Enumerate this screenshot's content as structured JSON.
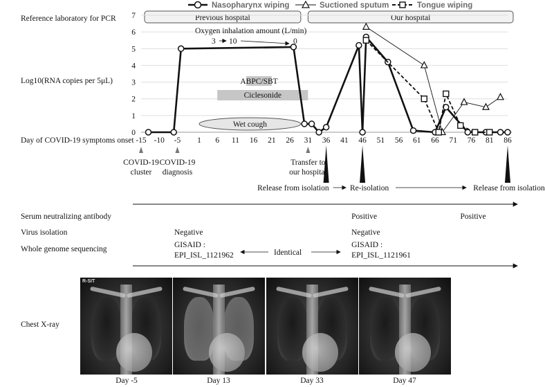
{
  "chart_data": {
    "type": "line",
    "title": "",
    "legend": {
      "position": "top",
      "entries": [
        "Nasopharynx wiping",
        "Suctioned sputum",
        "Tongue wiping"
      ]
    },
    "ylabel": "Log10(RNA copies per 5μL)",
    "xlabel": "Day of COVID-19 symptoms onset",
    "ylim": [
      0,
      7
    ],
    "yticks": [
      0,
      1,
      2,
      3,
      4,
      5,
      6,
      7
    ],
    "xlim": [
      -15,
      86
    ],
    "xticks": [
      -15,
      -10,
      -5,
      1,
      6,
      11,
      16,
      21,
      26,
      31,
      36,
      41,
      46,
      51,
      56,
      61,
      66,
      71,
      76,
      81,
      86
    ],
    "series": [
      {
        "name": "Nasopharynx wiping",
        "marker": "circle",
        "line": "solid-thick",
        "x": [
          -13,
          -6,
          -4,
          27,
          30,
          32,
          34,
          36,
          45,
          46,
          47,
          53,
          60,
          66,
          69,
          75,
          80,
          84,
          86
        ],
        "y": [
          0,
          0,
          5.0,
          5.1,
          0.5,
          0.5,
          0.0,
          0.3,
          5.2,
          0.0,
          5.7,
          4.2,
          0.1,
          0.0,
          1.5,
          0.0,
          0.0,
          0.0,
          0.0
        ]
      },
      {
        "name": "Suctioned sputum",
        "marker": "triangle",
        "line": "solid-thin",
        "x": [
          47,
          63,
          68,
          74,
          80,
          84
        ],
        "y": [
          6.3,
          4.0,
          0.0,
          1.8,
          1.5,
          2.1
        ]
      },
      {
        "name": "Tongue wiping",
        "marker": "square",
        "line": "dashed",
        "x": [
          47,
          63,
          67,
          69,
          73,
          77,
          81
        ],
        "y": [
          5.5,
          2.0,
          0.0,
          2.3,
          0.4,
          0.0,
          0.0
        ]
      }
    ],
    "row_labels": {
      "reference_lab": "Reference laboratory for PCR",
      "serum": "Serum neutralizing antibody",
      "virus": "Virus isolation",
      "wgs": "Whole genome sequencing",
      "xray": "Chest X-ray"
    },
    "hospitals": [
      {
        "label": "Previous hospital",
        "from": -16,
        "to": 29
      },
      {
        "label": "Our hospital",
        "from": 31,
        "to": 90
      }
    ],
    "oxygen": {
      "label": "Oxygen inhalation amount (L/min)",
      "values": [
        "3",
        "10",
        "0"
      ]
    },
    "treatments": [
      {
        "label": "ABPC/SBT",
        "from": 14,
        "to": 21,
        "y_level": 3
      },
      {
        "label": "Ciclesonide",
        "from": 6,
        "to": 31,
        "y_level": 2
      }
    ],
    "symptoms": [
      {
        "label": "Wet cough",
        "from": 1,
        "to": 29
      }
    ],
    "events": [
      {
        "label": "COVID-19 cluster",
        "day": -15
      },
      {
        "label": "COVID-19 diagnosis",
        "day": -5
      },
      {
        "label": "Transfer to our hospital",
        "day": 31
      }
    ],
    "isolation": {
      "marks": [
        {
          "label": "Release from isolation",
          "day": 36
        },
        {
          "label": "Re-isolation",
          "day": 46
        },
        {
          "label": "Release from isolation",
          "day": 86
        }
      ]
    },
    "serum_values": [
      {
        "day": 46,
        "text": "Positive"
      },
      {
        "day": 76,
        "text": "Positive"
      }
    ],
    "virus_values": [
      {
        "day": 1,
        "text": "Negative"
      },
      {
        "day": 46,
        "text": "Negative"
      }
    ],
    "wgs": {
      "left": {
        "line1": "GISAID :",
        "line2": "EPI_ISL_1121962"
      },
      "middle": "Identical",
      "right": {
        "line1": "GISAID :",
        "line2": "EPI_ISL_1121961"
      }
    },
    "xray_days": [
      "Day -5",
      "Day 13",
      "Day 33",
      "Day 47"
    ]
  }
}
